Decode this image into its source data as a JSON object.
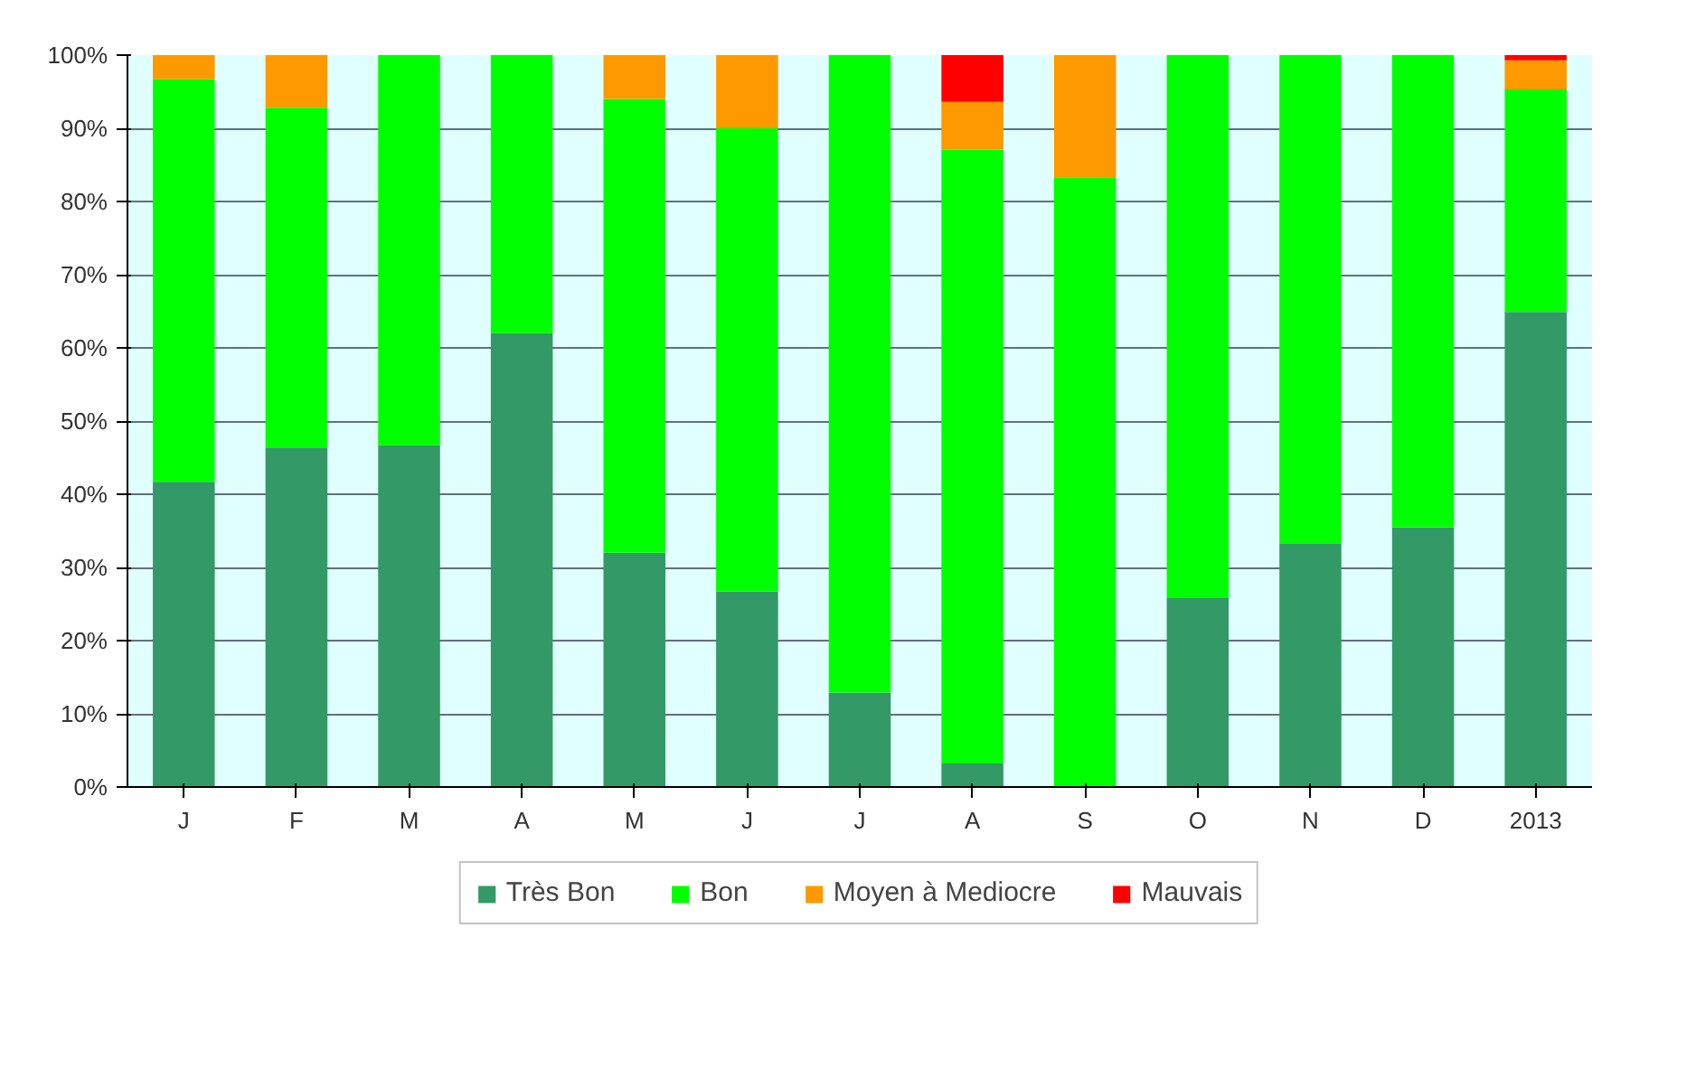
{
  "chart_data": {
    "type": "bar",
    "stacked": true,
    "categories": [
      "J",
      "F",
      "M",
      "A",
      "M",
      "J",
      "J",
      "A",
      "S",
      "O",
      "N",
      "D",
      "2013"
    ],
    "series": [
      {
        "name": "Très Bon",
        "color": "#339966",
        "values": [
          41.7,
          46.4,
          46.7,
          62,
          32,
          26.7,
          12.9,
          3.2,
          0,
          25.8,
          33.3,
          35.5,
          64.9
        ]
      },
      {
        "name": "Bon",
        "color": "#00ff00",
        "values": [
          55,
          46.4,
          53.3,
          38,
          62,
          63.3,
          87.1,
          83.9,
          83.3,
          74.2,
          66.7,
          64.5,
          30.4
        ]
      },
      {
        "name": "Moyen à Mediocre",
        "color": "#ff9900",
        "values": [
          3.3,
          7.2,
          0,
          0,
          6,
          10,
          0,
          6.5,
          16.7,
          0,
          0,
          0,
          4
        ]
      },
      {
        "name": "Mauvais",
        "color": "#ff0000",
        "values": [
          0,
          0,
          0,
          0,
          0,
          0,
          0,
          6.4,
          0,
          0,
          0,
          0,
          0.7
        ]
      }
    ],
    "ylim": [
      0,
      100
    ],
    "yticks": [
      {
        "value": 0,
        "label": "0%"
      },
      {
        "value": 10,
        "label": "10%"
      },
      {
        "value": 20,
        "label": "20%"
      },
      {
        "value": 30,
        "label": "30%"
      },
      {
        "value": 40,
        "label": "40%"
      },
      {
        "value": 50,
        "label": "50%"
      },
      {
        "value": 60,
        "label": "60%"
      },
      {
        "value": 70,
        "label": "70%"
      },
      {
        "value": 80,
        "label": "80%"
      },
      {
        "value": 90,
        "label": "90%"
      },
      {
        "value": 100,
        "label": "100%"
      }
    ],
    "grid": "y",
    "legend": "bottom"
  }
}
